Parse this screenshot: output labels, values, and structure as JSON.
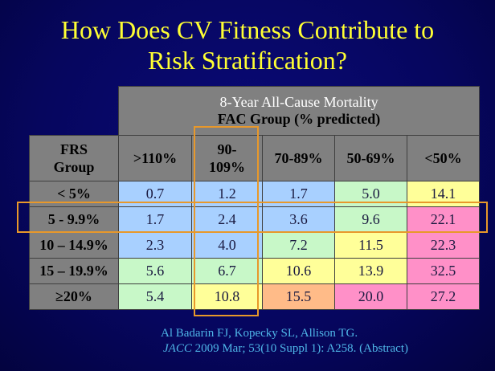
{
  "title": {
    "line1": "How Does CV Fitness Contribute to",
    "line2": "Risk Stratification?"
  },
  "table": {
    "header_line1": "8-Year All-Cause Mortality",
    "header_line2": "FAC Group (% predicted)",
    "row_header_label_line1": "FRS",
    "row_header_label_line2": "Group",
    "columns": [
      {
        "label_line1": ">110%",
        "label_line2": ""
      },
      {
        "label_line1": "90-",
        "label_line2": "109%"
      },
      {
        "label_line1": "70-89%",
        "label_line2": ""
      },
      {
        "label_line1": "50-69%",
        "label_line2": ""
      },
      {
        "label_line1": "<50%",
        "label_line2": ""
      }
    ],
    "rows": [
      {
        "group": "< 5%",
        "values": [
          "0.7",
          "1.2",
          "1.7",
          "5.0",
          "14.1"
        ],
        "colors": [
          "#a8d0ff",
          "#a8d0ff",
          "#a8d0ff",
          "#c8f8c8",
          "#ffff99"
        ]
      },
      {
        "group": "5 - 9.9%",
        "values": [
          "1.7",
          "2.4",
          "3.6",
          "9.6",
          "22.1"
        ],
        "colors": [
          "#a8d0ff",
          "#a8d0ff",
          "#a8d0ff",
          "#c8f8c8",
          "#ff90c8"
        ]
      },
      {
        "group": "10 – 14.9%",
        "values": [
          "2.3",
          "4.0",
          "7.2",
          "11.5",
          "22.3"
        ],
        "colors": [
          "#a8d0ff",
          "#a8d0ff",
          "#c8f8c8",
          "#ffff99",
          "#ff90c8"
        ]
      },
      {
        "group": "15 – 19.9%",
        "values": [
          "5.6",
          "6.7",
          "10.6",
          "13.9",
          "32.5"
        ],
        "colors": [
          "#c8f8c8",
          "#c8f8c8",
          "#ffff99",
          "#ffff99",
          "#ff90c8"
        ]
      },
      {
        "group": "≥20%",
        "values": [
          "5.4",
          "10.8",
          "15.5",
          "20.0",
          "27.2"
        ],
        "colors": [
          "#c8f8c8",
          "#ffff99",
          "#ffbb88",
          "#ff90c8",
          "#ff90c8"
        ]
      }
    ],
    "highlight_color": "#e8982a",
    "highlighted_column": "90-109%",
    "highlighted_row": "5 - 9.9%"
  },
  "citation": {
    "line1": "Al Badarin FJ, Kopecky SL, Allison TG.",
    "journal": "JACC",
    "line2_rest": " 2009 Mar; 53(10 Suppl 1): A258.  (Abstract)"
  },
  "colors": {
    "title": "#ffff33",
    "citation": "#4fb6e8",
    "background": "#06065e"
  }
}
